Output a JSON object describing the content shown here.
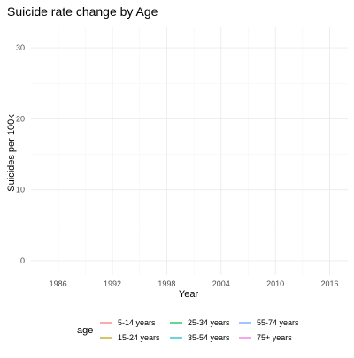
{
  "chart_data": {
    "type": "line",
    "title": "Suicide rate change by Age",
    "xlabel": "Year",
    "ylabel": "Suicides per 100k",
    "xlim": [
      1983,
      2018
    ],
    "ylim": [
      -2,
      33
    ],
    "x_ticks": [
      1986,
      1992,
      1998,
      2004,
      2010,
      2016
    ],
    "y_ticks": [
      0,
      10,
      20,
      30
    ],
    "grid": true,
    "legend_position": "bottom",
    "legend_title": "age",
    "series": [
      {
        "name": "5-14 years",
        "color": "#F8766D",
        "values": []
      },
      {
        "name": "15-24 years",
        "color": "#B79F00",
        "values": []
      },
      {
        "name": "25-34 years",
        "color": "#00BA38",
        "values": []
      },
      {
        "name": "35-54 years",
        "color": "#00BFC4",
        "values": []
      },
      {
        "name": "55-74 years",
        "color": "#619CFF",
        "values": []
      },
      {
        "name": "75+ years",
        "color": "#F564E3",
        "values": []
      }
    ]
  }
}
